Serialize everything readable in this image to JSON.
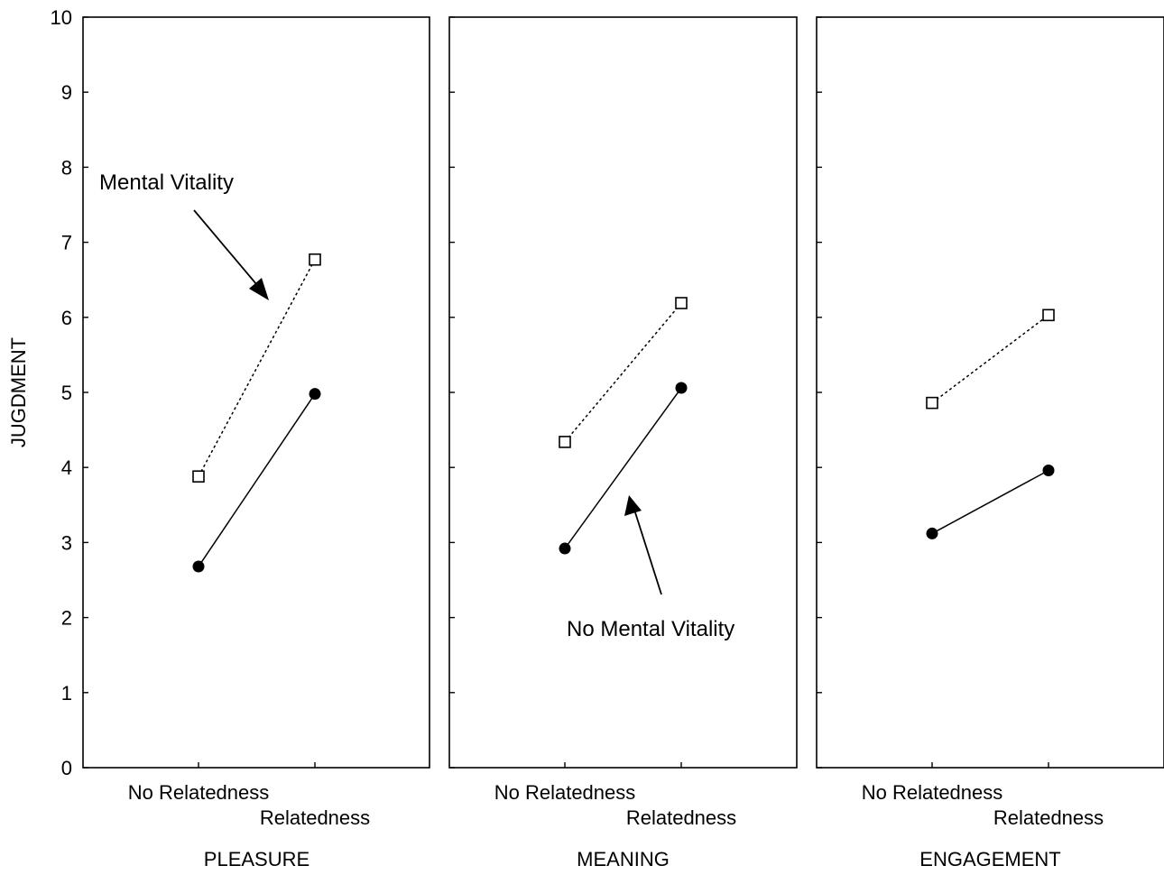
{
  "chart_data": {
    "type": "line",
    "ylabel": "JUGDMENT",
    "ylim": [
      0,
      10
    ],
    "yticks": [
      "0",
      "1",
      "2",
      "3",
      "4",
      "5",
      "6",
      "7",
      "8",
      "9",
      "10"
    ],
    "categories": [
      "No Relatedness",
      "Relatedness"
    ],
    "panels": [
      {
        "title": "PLEASURE",
        "series": [
          {
            "key": "mental_vitality",
            "marker": "open-square",
            "line": "dotted",
            "values": [
              3.88,
              6.77
            ]
          },
          {
            "key": "no_mental_vitality",
            "marker": "filled-circle",
            "line": "solid",
            "values": [
              2.68,
              4.98
            ]
          }
        ]
      },
      {
        "title": "MEANING",
        "series": [
          {
            "key": "mental_vitality",
            "marker": "open-square",
            "line": "dotted",
            "values": [
              4.34,
              6.19
            ]
          },
          {
            "key": "no_mental_vitality",
            "marker": "filled-circle",
            "line": "solid",
            "values": [
              2.92,
              5.06
            ]
          }
        ]
      },
      {
        "title": "ENGAGEMENT",
        "series": [
          {
            "key": "mental_vitality",
            "marker": "open-square",
            "line": "dotted",
            "values": [
              4.86,
              6.03
            ]
          },
          {
            "key": "no_mental_vitality",
            "marker": "filled-circle",
            "line": "solid",
            "values": [
              3.12,
              3.96
            ]
          }
        ]
      }
    ],
    "annotations": {
      "mental_vitality": "Mental Vitality",
      "no_mental_vitality": "No Mental Vitality"
    }
  }
}
